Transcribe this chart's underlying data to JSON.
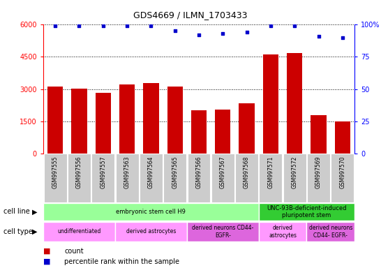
{
  "title": "GDS4669 / ILMN_1703433",
  "samples": [
    "GSM997555",
    "GSM997556",
    "GSM997557",
    "GSM997563",
    "GSM997564",
    "GSM997565",
    "GSM997566",
    "GSM997567",
    "GSM997568",
    "GSM997571",
    "GSM997572",
    "GSM997569",
    "GSM997570"
  ],
  "counts": [
    3100,
    3020,
    2820,
    3220,
    3280,
    3120,
    2020,
    2050,
    2350,
    4620,
    4680,
    1780,
    1480
  ],
  "percentiles": [
    99,
    99,
    99,
    99,
    99,
    95,
    92,
    93,
    94,
    99,
    99,
    91,
    90
  ],
  "ylim_left": [
    0,
    6000
  ],
  "ylim_right": [
    0,
    100
  ],
  "yticks_left": [
    0,
    1500,
    3000,
    4500,
    6000
  ],
  "yticks_right": [
    0,
    25,
    50,
    75,
    100
  ],
  "bar_color": "#cc0000",
  "dot_color": "#0000cc",
  "cell_line_groups": [
    {
      "label": "embryonic stem cell H9",
      "start": 0,
      "end": 9,
      "color": "#99ff99"
    },
    {
      "label": "UNC-93B-deficient-induced\npluripotent stem",
      "start": 9,
      "end": 13,
      "color": "#33cc33"
    }
  ],
  "cell_type_groups": [
    {
      "label": "undifferentiated",
      "start": 0,
      "end": 3,
      "color": "#ff99ff"
    },
    {
      "label": "derived astrocytes",
      "start": 3,
      "end": 6,
      "color": "#ff99ff"
    },
    {
      "label": "derived neurons CD44-\nEGFR-",
      "start": 6,
      "end": 9,
      "color": "#dd66dd"
    },
    {
      "label": "derived\nastrocytes",
      "start": 9,
      "end": 11,
      "color": "#ff99ff"
    },
    {
      "label": "derived neurons\nCD44- EGFR-",
      "start": 11,
      "end": 13,
      "color": "#dd66dd"
    }
  ],
  "legend_count_label": "count",
  "legend_pct_label": "percentile rank within the sample",
  "bg_color": "#ffffff",
  "tick_label_bg": "#cccccc"
}
